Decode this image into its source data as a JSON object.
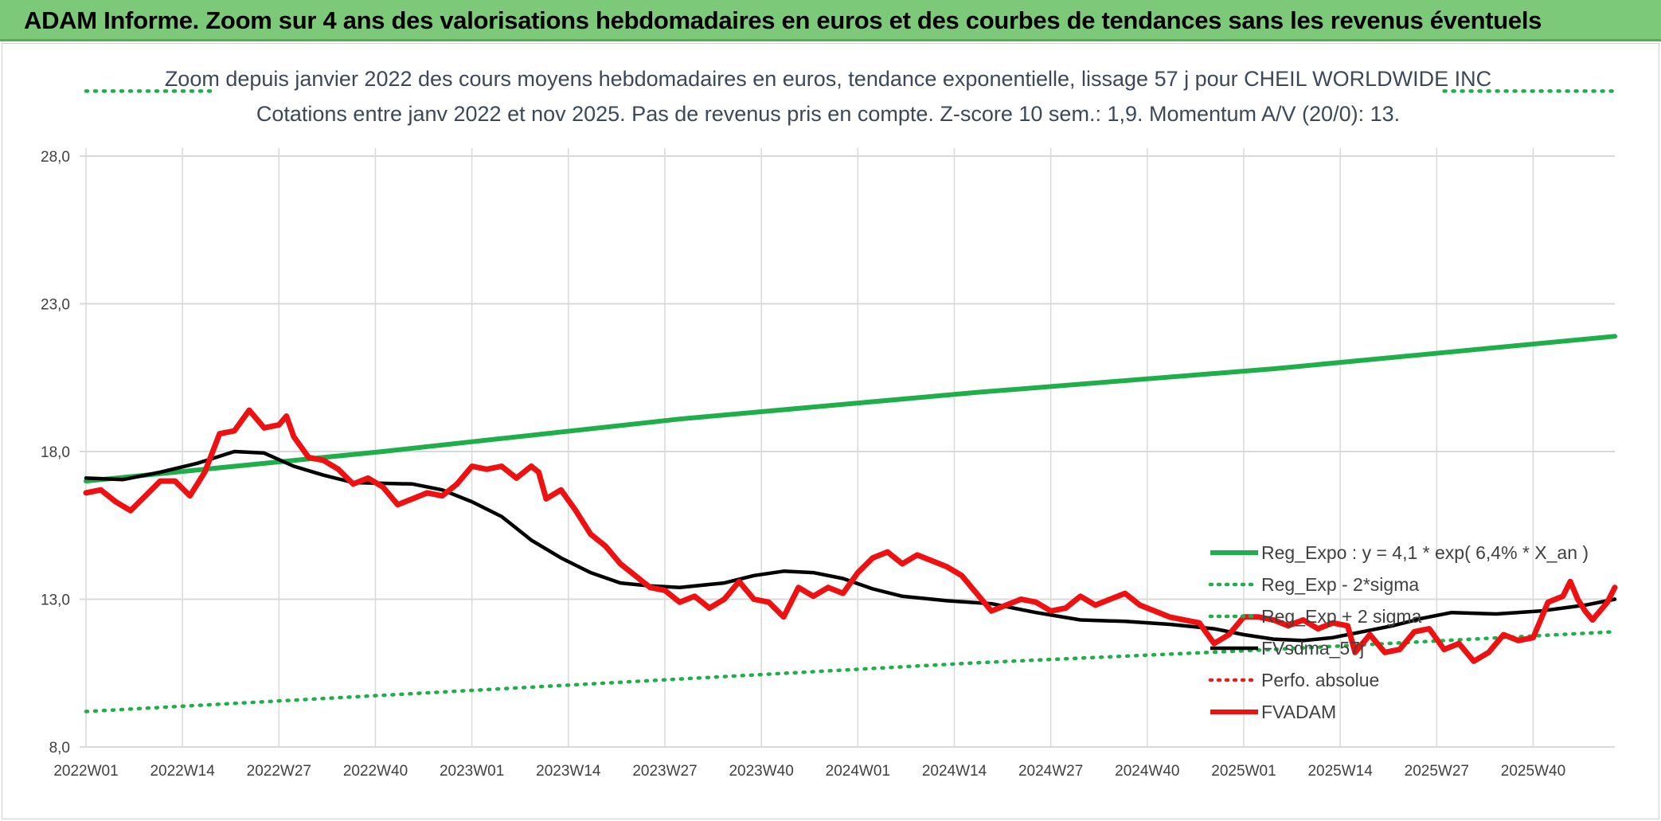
{
  "header": {
    "title": "ADAM Informe. Zoom sur 4 ans des valorisations hebdomadaires en euros et des courbes de tendances sans les revenus éventuels"
  },
  "colors": {
    "header_bg": "#7cc97a",
    "trend": "#1fae4a",
    "fvadam": "#ee1111",
    "smooth": "#000000",
    "perfo": "#dd2222",
    "grid": "#d9d9d9"
  },
  "chart_data": {
    "type": "line",
    "title_line1": "Zoom depuis janvier 2022 des cours moyens hebdomadaires en euros, tendance exponentielle, lissage 57 j pour CHEIL WORLDWIDE INC",
    "title_line2": "Cotations entre janv 2022 et nov 2025. Pas de revenus pris en compte. Z-score 10 sem.: 1,9. Momentum A/V (20/0): 13.",
    "ylim": [
      8,
      28
    ],
    "y_ticks": [
      "28,0",
      "23,0",
      "18,0",
      "13,0",
      "8,0"
    ],
    "y_tick_values": [
      28,
      23,
      18,
      13,
      8
    ],
    "x_ticks": [
      "2022W01",
      "2022W14",
      "2022W27",
      "2022W40",
      "2023W01",
      "2023W14",
      "2023W27",
      "2023W40",
      "2024W01",
      "2024W14",
      "2024W27",
      "2024W40",
      "2025W01",
      "2025W14",
      "2025W27",
      "2025W40"
    ],
    "x_tick_index": [
      0,
      13,
      26,
      39,
      52,
      65,
      78,
      91,
      104,
      117,
      130,
      143,
      156,
      169,
      182,
      195
    ],
    "n_weeks": 207,
    "grid": true,
    "legend_position": "bottom-right",
    "legend": [
      {
        "label": "Reg_Expo : y = 4,1 * exp( 6,4% *  X_an )",
        "style": "solid-thick",
        "color": "#1fae4a"
      },
      {
        "label": "Reg_Exp - 2*sigma",
        "style": "dotted",
        "color": "#1fae4a"
      },
      {
        "label": "Reg_Exp + 2 sigma",
        "style": "dotted",
        "color": "#1fae4a"
      },
      {
        "label": "FVsdma_57j",
        "style": "solid",
        "color": "#000000"
      },
      {
        "label": "Perfo. absolue",
        "style": "dotted",
        "color": "#dd2222"
      },
      {
        "label": "FVADAM",
        "style": "solid-thick",
        "color": "#ee1111"
      }
    ],
    "series": [
      {
        "name": "Reg_Expo : y = 4,1 * exp( 6,4% *  X_an )",
        "points": [
          [
            0,
            17.0
          ],
          [
            40,
            18.0
          ],
          [
            80,
            19.1
          ],
          [
            120,
            20.0
          ],
          [
            160,
            20.8
          ],
          [
            206,
            21.9
          ]
        ]
      },
      {
        "name": "Reg_Exp - 2*sigma",
        "points": [
          [
            0,
            9.2
          ],
          [
            40,
            9.75
          ],
          [
            80,
            10.3
          ],
          [
            120,
            10.85
          ],
          [
            160,
            11.3
          ],
          [
            206,
            11.9
          ]
        ]
      },
      {
        "name": "Reg_Exp + 2 sigma",
        "points": [
          [
            0,
            30.2
          ],
          [
            17,
            30.2
          ],
          [
            183,
            30.2
          ],
          [
            206,
            30.2
          ]
        ],
        "visible_ranges": [
          [
            0,
            17
          ],
          [
            183,
            206
          ]
        ]
      },
      {
        "name": "FVsdma_57j",
        "points": [
          [
            0,
            17.1
          ],
          [
            5,
            17.05
          ],
          [
            10,
            17.3
          ],
          [
            15,
            17.6
          ],
          [
            20,
            18.0
          ],
          [
            24,
            17.95
          ],
          [
            28,
            17.5
          ],
          [
            32,
            17.2
          ],
          [
            36,
            16.95
          ],
          [
            44,
            16.9
          ],
          [
            48,
            16.7
          ],
          [
            52,
            16.3
          ],
          [
            56,
            15.8
          ],
          [
            60,
            15.0
          ],
          [
            64,
            14.4
          ],
          [
            68,
            13.9
          ],
          [
            72,
            13.55
          ],
          [
            76,
            13.45
          ],
          [
            80,
            13.4
          ],
          [
            86,
            13.55
          ],
          [
            90,
            13.8
          ],
          [
            94,
            13.95
          ],
          [
            98,
            13.9
          ],
          [
            102,
            13.7
          ],
          [
            106,
            13.35
          ],
          [
            110,
            13.1
          ],
          [
            116,
            12.95
          ],
          [
            122,
            12.85
          ],
          [
            128,
            12.55
          ],
          [
            134,
            12.3
          ],
          [
            140,
            12.25
          ],
          [
            146,
            12.15
          ],
          [
            152,
            12.0
          ],
          [
            156,
            11.8
          ],
          [
            160,
            11.65
          ],
          [
            164,
            11.6
          ],
          [
            168,
            11.7
          ],
          [
            172,
            11.9
          ],
          [
            176,
            12.1
          ],
          [
            180,
            12.35
          ],
          [
            184,
            12.55
          ],
          [
            190,
            12.5
          ],
          [
            196,
            12.6
          ],
          [
            202,
            12.8
          ],
          [
            206,
            13.0
          ]
        ]
      },
      {
        "name": "FVADAM",
        "points": [
          [
            0,
            16.6
          ],
          [
            2,
            16.7
          ],
          [
            4,
            16.3
          ],
          [
            6,
            16.0
          ],
          [
            8,
            16.5
          ],
          [
            10,
            17.0
          ],
          [
            12,
            17.0
          ],
          [
            14,
            16.5
          ],
          [
            16,
            17.3
          ],
          [
            18,
            18.6
          ],
          [
            20,
            18.7
          ],
          [
            22,
            19.4
          ],
          [
            24,
            18.8
          ],
          [
            26,
            18.9
          ],
          [
            27,
            19.2
          ],
          [
            28,
            18.5
          ],
          [
            30,
            17.8
          ],
          [
            32,
            17.7
          ],
          [
            34,
            17.4
          ],
          [
            36,
            16.9
          ],
          [
            38,
            17.1
          ],
          [
            40,
            16.8
          ],
          [
            42,
            16.2
          ],
          [
            44,
            16.4
          ],
          [
            46,
            16.6
          ],
          [
            48,
            16.5
          ],
          [
            50,
            16.9
          ],
          [
            52,
            17.5
          ],
          [
            54,
            17.4
          ],
          [
            56,
            17.5
          ],
          [
            58,
            17.1
          ],
          [
            60,
            17.5
          ],
          [
            61,
            17.3
          ],
          [
            62,
            16.4
          ],
          [
            64,
            16.7
          ],
          [
            66,
            16.0
          ],
          [
            68,
            15.2
          ],
          [
            70,
            14.8
          ],
          [
            72,
            14.2
          ],
          [
            74,
            13.8
          ],
          [
            76,
            13.4
          ],
          [
            78,
            13.3
          ],
          [
            80,
            12.9
          ],
          [
            82,
            13.1
          ],
          [
            84,
            12.7
          ],
          [
            86,
            13.0
          ],
          [
            88,
            13.6
          ],
          [
            90,
            13.0
          ],
          [
            92,
            12.9
          ],
          [
            94,
            12.4
          ],
          [
            96,
            13.4
          ],
          [
            98,
            13.1
          ],
          [
            100,
            13.4
          ],
          [
            102,
            13.2
          ],
          [
            104,
            13.9
          ],
          [
            106,
            14.4
          ],
          [
            108,
            14.6
          ],
          [
            110,
            14.2
          ],
          [
            112,
            14.5
          ],
          [
            114,
            14.3
          ],
          [
            116,
            14.1
          ],
          [
            118,
            13.8
          ],
          [
            120,
            13.2
          ],
          [
            122,
            12.6
          ],
          [
            124,
            12.8
          ],
          [
            126,
            13.0
          ],
          [
            128,
            12.9
          ],
          [
            130,
            12.6
          ],
          [
            132,
            12.7
          ],
          [
            134,
            13.1
          ],
          [
            136,
            12.8
          ],
          [
            138,
            13.0
          ],
          [
            140,
            13.2
          ],
          [
            142,
            12.8
          ],
          [
            144,
            12.6
          ],
          [
            146,
            12.4
          ],
          [
            148,
            12.3
          ],
          [
            150,
            12.2
          ],
          [
            152,
            11.5
          ],
          [
            154,
            11.8
          ],
          [
            156,
            12.4
          ],
          [
            158,
            12.4
          ],
          [
            160,
            12.3
          ],
          [
            162,
            12.1
          ],
          [
            164,
            12.3
          ],
          [
            166,
            12.0
          ],
          [
            168,
            12.2
          ],
          [
            170,
            12.1
          ],
          [
            171,
            11.2
          ],
          [
            173,
            11.8
          ],
          [
            175,
            11.2
          ],
          [
            177,
            11.3
          ],
          [
            179,
            11.9
          ],
          [
            181,
            12.0
          ],
          [
            183,
            11.3
          ],
          [
            185,
            11.5
          ],
          [
            187,
            10.9
          ],
          [
            189,
            11.2
          ],
          [
            191,
            11.8
          ],
          [
            193,
            11.6
          ],
          [
            195,
            11.7
          ],
          [
            197,
            12.9
          ],
          [
            199,
            13.1
          ],
          [
            200,
            13.6
          ],
          [
            201,
            13.0
          ],
          [
            202,
            12.6
          ],
          [
            203,
            12.3
          ],
          [
            204,
            12.6
          ],
          [
            205,
            12.9
          ],
          [
            206,
            13.4
          ]
        ]
      }
    ]
  }
}
